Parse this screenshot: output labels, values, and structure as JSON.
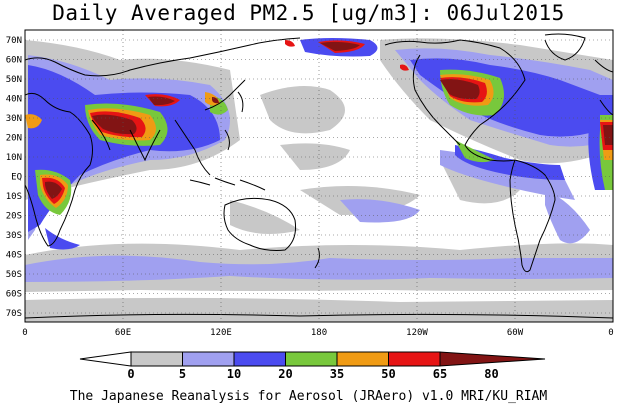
{
  "title": "Daily Averaged PM2.5 [ug/m3]: 06Jul2015",
  "credit": "The Japanese Reanalysis for Aerosol (JRAero) v1.0 MRI/KU_RIAM",
  "map": {
    "projection": "equirectangular, Pacific-centered (0E to 360E)",
    "lat_labels": [
      "70N",
      "60N",
      "50N",
      "40N",
      "30N",
      "20N",
      "10N",
      "EQ",
      "10S",
      "20S",
      "30S",
      "40S",
      "50S",
      "60S",
      "70S"
    ],
    "lon_labels": [
      "0",
      "60E",
      "120E",
      "180",
      "120W",
      "60W",
      "0"
    ],
    "grid": "dotted"
  },
  "colorbar": {
    "ticks": [
      "0",
      "5",
      "10",
      "20",
      "35",
      "50",
      "65",
      "80"
    ],
    "colors": [
      "#ffffff",
      "#c8c8c8",
      "#a0a0f0",
      "#4b4bf0",
      "#78c83c",
      "#f09b14",
      "#e61414",
      "#821414"
    ]
  }
}
